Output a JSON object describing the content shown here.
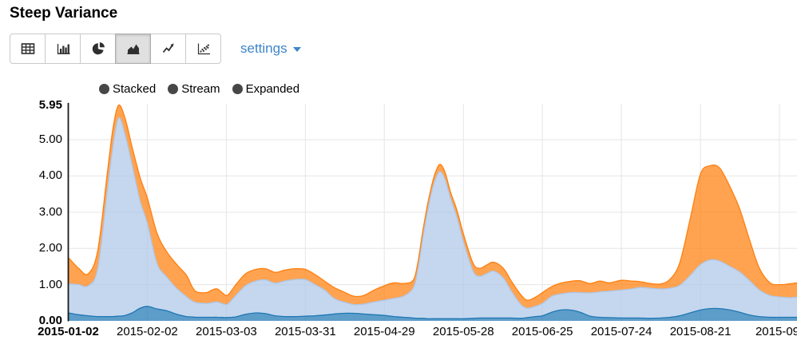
{
  "header": {
    "title": "Steep Variance"
  },
  "toolbar": {
    "buttons": [
      {
        "name": "table"
      },
      {
        "name": "bar-chart"
      },
      {
        "name": "pie-chart"
      },
      {
        "name": "area-chart",
        "active": true
      },
      {
        "name": "line-chart"
      },
      {
        "name": "scatter-plot"
      }
    ],
    "active_button": "area-chart",
    "settings_label": "settings",
    "settings_color": "#3d85c8"
  },
  "controls": {
    "items": [
      {
        "label": "Stacked"
      },
      {
        "label": "Stream"
      },
      {
        "label": "Expanded"
      }
    ]
  },
  "chart_data": {
    "type": "area",
    "mode": "stacked",
    "title": "Steep Variance",
    "grid": true,
    "ylim": [
      0,
      5.95
    ],
    "y_ticks": [
      {
        "label": "5.95",
        "value": 5.95,
        "bold": true
      },
      {
        "label": "5.00",
        "value": 5
      },
      {
        "label": "4.00",
        "value": 4
      },
      {
        "label": "3.00",
        "value": 3
      },
      {
        "label": "2.00",
        "value": 2
      },
      {
        "label": "1.00",
        "value": 1
      },
      {
        "label": "0.00",
        "value": 0,
        "bold": true
      }
    ],
    "x_ticks": [
      {
        "label": "2015-01-02",
        "t": 0,
        "bold": true
      },
      {
        "label": "2015-02-02",
        "t": 0.1084
      },
      {
        "label": "2015-03-03",
        "t": 0.2169
      },
      {
        "label": "2015-03-31",
        "t": 0.3253
      },
      {
        "label": "2015-04-29",
        "t": 0.4337
      },
      {
        "label": "2015-05-28",
        "t": 0.5422
      },
      {
        "label": "2015-06-25",
        "t": 0.6506
      },
      {
        "label": "2015-07-24",
        "t": 0.759
      },
      {
        "label": "2015-08-21",
        "t": 0.8675
      },
      {
        "label": "2015-09-",
        "t": 0.9759
      }
    ],
    "t": [
      0,
      0.0142,
      0.0274,
      0.0405,
      0.0537,
      0.0613,
      0.069,
      0.0778,
      0.0876,
      0.0986,
      0.1084,
      0.1216,
      0.1347,
      0.149,
      0.1621,
      0.1698,
      0.1763,
      0.1895,
      0.1972,
      0.2048,
      0.2169,
      0.2245,
      0.23,
      0.2432,
      0.2574,
      0.2706,
      0.2837,
      0.2969,
      0.3111,
      0.3253,
      0.3385,
      0.3516,
      0.3648,
      0.3779,
      0.3921,
      0.4053,
      0.4195,
      0.4337,
      0.4469,
      0.46,
      0.4732,
      0.4797,
      0.4863,
      0.4929,
      0.4995,
      0.5049,
      0.5104,
      0.517,
      0.5246,
      0.5334,
      0.5422,
      0.5553,
      0.5641,
      0.5739,
      0.5838,
      0.597,
      0.6079,
      0.621,
      0.6298,
      0.6407,
      0.6506,
      0.6637,
      0.6758,
      0.6889,
      0.7021,
      0.7163,
      0.7294,
      0.7426,
      0.759,
      0.7722,
      0.7853,
      0.7985,
      0.8127,
      0.8259,
      0.839,
      0.8533,
      0.8675,
      0.8806,
      0.8938,
      0.908,
      0.9212,
      0.9354,
      0.9485,
      0.9628,
      0.9759,
      0.989,
      1
    ],
    "series": [
      {
        "name": "series-1",
        "fill": "rgba(31,119,180,0.72)",
        "stroke": "#1f77b4",
        "values": [
          0.22,
          0.17,
          0.14,
          0.12,
          0.12,
          0.12,
          0.13,
          0.15,
          0.22,
          0.35,
          0.4,
          0.33,
          0.28,
          0.18,
          0.12,
          0.11,
          0.1,
          0.1,
          0.1,
          0.1,
          0.09,
          0.1,
          0.11,
          0.18,
          0.22,
          0.2,
          0.14,
          0.12,
          0.12,
          0.13,
          0.14,
          0.16,
          0.19,
          0.21,
          0.21,
          0.19,
          0.17,
          0.15,
          0.12,
          0.1,
          0.08,
          0.07,
          0.07,
          0.06,
          0.06,
          0.06,
          0.06,
          0.06,
          0.06,
          0.06,
          0.06,
          0.07,
          0.08,
          0.08,
          0.08,
          0.08,
          0.08,
          0.07,
          0.09,
          0.12,
          0.14,
          0.24,
          0.3,
          0.3,
          0.24,
          0.13,
          0.1,
          0.09,
          0.08,
          0.08,
          0.08,
          0.07,
          0.08,
          0.1,
          0.14,
          0.22,
          0.3,
          0.34,
          0.34,
          0.3,
          0.24,
          0.16,
          0.12,
          0.1,
          0.1,
          0.1,
          0.1
        ]
      },
      {
        "name": "series-2",
        "fill": "rgba(174,199,232,0.72)",
        "stroke": "#aec7e8",
        "values": [
          0.8,
          0.83,
          0.83,
          1.33,
          3.48,
          4.68,
          5.47,
          5.0,
          4.08,
          2.95,
          2.3,
          1.26,
          0.94,
          0.71,
          0.55,
          0.44,
          0.4,
          0.38,
          0.4,
          0.42,
          0.36,
          0.48,
          0.59,
          0.79,
          0.88,
          0.93,
          0.9,
          0.98,
          1.02,
          1.01,
          0.86,
          0.69,
          0.43,
          0.31,
          0.24,
          0.27,
          0.35,
          0.42,
          0.5,
          0.58,
          0.82,
          1.33,
          2.18,
          2.94,
          3.56,
          3.9,
          4.06,
          3.84,
          3.32,
          2.79,
          2.12,
          1.31,
          1.15,
          1.22,
          1.29,
          1.1,
          0.74,
          0.38,
          0.26,
          0.28,
          0.34,
          0.44,
          0.44,
          0.48,
          0.54,
          0.64,
          0.7,
          0.73,
          0.77,
          0.8,
          0.84,
          0.83,
          0.8,
          0.8,
          0.84,
          1.03,
          1.25,
          1.34,
          1.31,
          1.2,
          1.11,
          0.94,
          0.73,
          0.6,
          0.56,
          0.54,
          0.55
        ]
      },
      {
        "name": "series-3",
        "fill": "rgba(255,127,14,0.72)",
        "stroke": "#ff7f0e",
        "values": [
          0.73,
          0.45,
          0.33,
          0.5,
          0.5,
          0.5,
          0.35,
          0.45,
          0.5,
          0.65,
          0.7,
          0.84,
          0.7,
          0.66,
          0.59,
          0.4,
          0.3,
          0.3,
          0.35,
          0.36,
          0.25,
          0.27,
          0.3,
          0.33,
          0.32,
          0.31,
          0.3,
          0.3,
          0.3,
          0.28,
          0.28,
          0.25,
          0.3,
          0.28,
          0.23,
          0.24,
          0.33,
          0.4,
          0.43,
          0.35,
          0.22,
          0.2,
          0.2,
          0.2,
          0.18,
          0.19,
          0.2,
          0.2,
          0.17,
          0.2,
          0.22,
          0.22,
          0.22,
          0.24,
          0.25,
          0.27,
          0.28,
          0.27,
          0.22,
          0.25,
          0.3,
          0.27,
          0.3,
          0.31,
          0.33,
          0.26,
          0.3,
          0.23,
          0.27,
          0.22,
          0.16,
          0.13,
          0.14,
          0.25,
          0.62,
          1.55,
          2.5,
          2.6,
          2.57,
          2.2,
          1.75,
          1.1,
          0.6,
          0.35,
          0.34,
          0.38,
          0.4
        ]
      }
    ],
    "colors": {
      "grid": "#e6e6e6",
      "axis": "#1a1a1a"
    }
  }
}
